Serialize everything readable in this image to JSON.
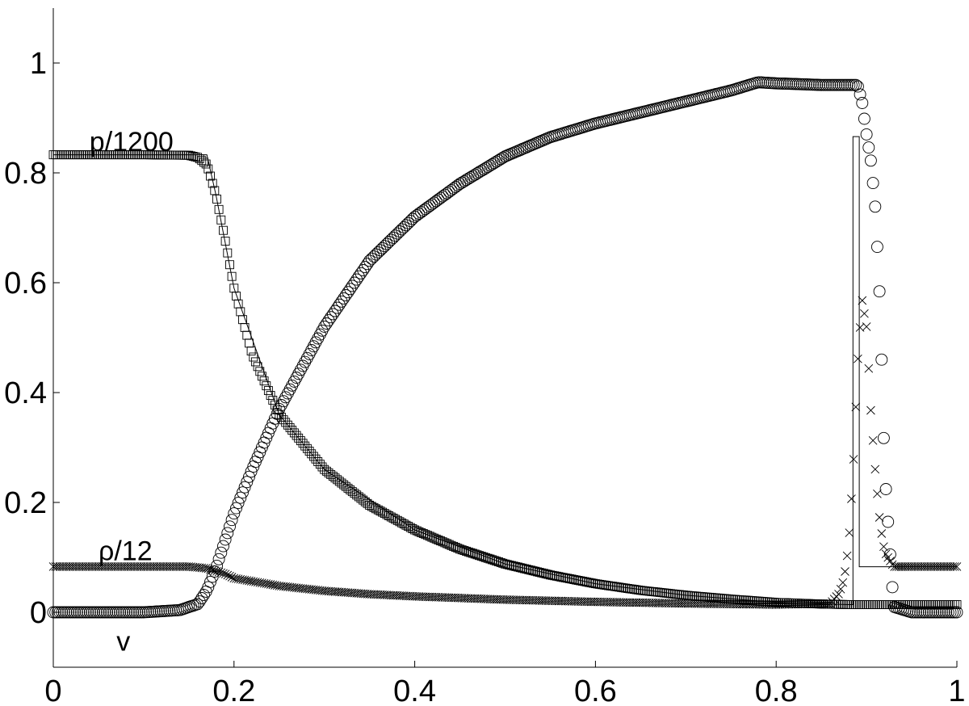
{
  "chart_data": {
    "type": "scatter",
    "title": "",
    "xlabel": "",
    "ylabel": "",
    "xlim": [
      0,
      1
    ],
    "ylim": [
      -0.1,
      1.1
    ],
    "grid": false,
    "legend": "none",
    "x_ticks": [
      {
        "value": 0,
        "label": "0"
      },
      {
        "value": 0.2,
        "label": "0.2"
      },
      {
        "value": 0.4,
        "label": "0.4"
      },
      {
        "value": 0.6,
        "label": "0.6"
      },
      {
        "value": 0.8,
        "label": "0.8"
      },
      {
        "value": 1,
        "label": "1"
      }
    ],
    "y_ticks": [
      {
        "value": 0,
        "label": "0"
      },
      {
        "value": 0.2,
        "label": "0.2"
      },
      {
        "value": 0.4,
        "label": "0.4"
      },
      {
        "value": 0.6,
        "label": "0.6"
      },
      {
        "value": 0.8,
        "label": "0.8"
      },
      {
        "value": 1,
        "label": "1"
      }
    ],
    "annotations": [
      {
        "text": "p/1200",
        "x": 0.04,
        "y": 0.84
      },
      {
        "text": "ρ/12",
        "x": 0.05,
        "y": 0.095
      },
      {
        "text": "v",
        "x": 0.07,
        "y": -0.07
      }
    ],
    "series": [
      {
        "marker": "square",
        "color": "#000000",
        "x": [
          0,
          0.05,
          0.1,
          0.15,
          0.16,
          0.17,
          0.18,
          0.19,
          0.2,
          0.22,
          0.25,
          0.3,
          0.35,
          0.4,
          0.45,
          0.5,
          0.55,
          0.6,
          0.65,
          0.7,
          0.75,
          0.8,
          0.85,
          0.88
        ],
        "values": [
          0.833,
          0.833,
          0.833,
          0.832,
          0.828,
          0.815,
          0.76,
          0.68,
          0.59,
          0.47,
          0.36,
          0.26,
          0.195,
          0.15,
          0.115,
          0.088,
          0.068,
          0.052,
          0.04,
          0.031,
          0.024,
          0.018,
          0.015,
          0.014
        ]
      },
      {
        "marker": "circle",
        "color": "#000000",
        "x": [
          0,
          0.05,
          0.1,
          0.14,
          0.16,
          0.17,
          0.18,
          0.19,
          0.2,
          0.22,
          0.25,
          0.3,
          0.35,
          0.4,
          0.45,
          0.5,
          0.55,
          0.6,
          0.65,
          0.7,
          0.75,
          0.78,
          0.8,
          0.85,
          0.89,
          0.895,
          0.9,
          0.905,
          0.91,
          0.915,
          0.92,
          0.93,
          0.95,
          1
        ],
        "values": [
          0,
          0,
          0,
          0.004,
          0.015,
          0.04,
          0.08,
          0.13,
          0.18,
          0.26,
          0.37,
          0.52,
          0.64,
          0.72,
          0.78,
          0.83,
          0.865,
          0.89,
          0.91,
          0.93,
          0.95,
          0.965,
          0.963,
          0.96,
          0.96,
          0.93,
          0.87,
          0.82,
          0.73,
          0.56,
          0.26,
          0.01,
          0,
          0
        ]
      },
      {
        "marker": "cross",
        "color": "#000000",
        "x": [
          0,
          0.05,
          0.1,
          0.15,
          0.17,
          0.19,
          0.2,
          0.25,
          0.3,
          0.35,
          0.4,
          0.5,
          0.6,
          0.7,
          0.8,
          0.86,
          0.87,
          0.875,
          0.88,
          0.885,
          0.89,
          0.895,
          0.9,
          0.905,
          0.91,
          0.915,
          0.92,
          0.93,
          0.95,
          1
        ],
        "values": [
          0.0833,
          0.0833,
          0.0833,
          0.0833,
          0.08,
          0.07,
          0.062,
          0.048,
          0.039,
          0.033,
          0.029,
          0.023,
          0.019,
          0.016,
          0.014,
          0.016,
          0.035,
          0.06,
          0.12,
          0.25,
          0.45,
          0.57,
          0.52,
          0.36,
          0.25,
          0.16,
          0.11,
          0.083,
          0.0833,
          0.0833
        ]
      },
      {
        "marker": "line",
        "color": "#000000",
        "x": [
          0,
          0.1,
          0.17,
          0.18,
          0.2,
          0.25,
          0.3,
          0.4,
          0.5,
          0.6,
          0.7,
          0.8,
          0.88,
          0.885,
          0.885,
          0.892,
          0.892,
          1
        ],
        "values": [
          0.833,
          0.833,
          0.833,
          0.76,
          0.59,
          0.36,
          0.26,
          0.15,
          0.088,
          0.052,
          0.031,
          0.018,
          0.014,
          0.014,
          0.866,
          0.866,
          0.083,
          0.083
        ]
      }
    ]
  }
}
